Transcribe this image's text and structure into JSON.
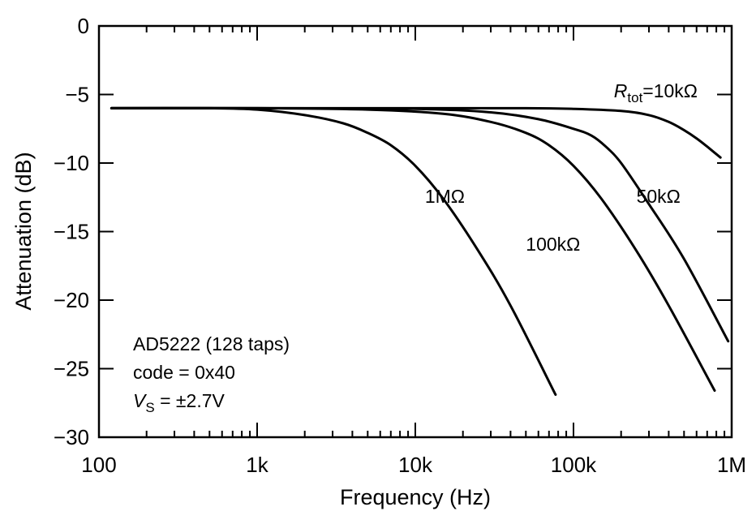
{
  "chart_data": {
    "type": "line",
    "title": "",
    "xlabel": "Frequency (Hz)",
    "ylabel": "Attenuation (dB)",
    "xscale": "log",
    "xlim": [
      100,
      1000000
    ],
    "ylim": [
      -30,
      0
    ],
    "grid": false,
    "x_ticks": [
      {
        "value": 100,
        "label": "100"
      },
      {
        "value": 1000,
        "label": "1k"
      },
      {
        "value": 10000,
        "label": "10k"
      },
      {
        "value": 100000,
        "label": "100k"
      },
      {
        "value": 1000000,
        "label": "1M"
      }
    ],
    "y_ticks": [
      {
        "value": 0,
        "label": "0"
      },
      {
        "value": -5,
        "label": "−5"
      },
      {
        "value": -10,
        "label": "−10"
      },
      {
        "value": -15,
        "label": "−15"
      },
      {
        "value": -20,
        "label": "−20"
      },
      {
        "value": -25,
        "label": "−25"
      },
      {
        "value": -30,
        "label": "−30"
      }
    ],
    "series": [
      {
        "name": "Rtot=10kΩ",
        "label_parts": {
          "italic": "R",
          "sub": "tot",
          "rest": "=10kΩ"
        },
        "x": [
          120,
          1000,
          10000,
          50000,
          100000,
          200000,
          300000,
          400000,
          500000,
          600000,
          700000,
          850000
        ],
        "y": [
          -6.0,
          -6.0,
          -6.0,
          -6.0,
          -6.05,
          -6.2,
          -6.5,
          -7.0,
          -7.6,
          -8.2,
          -8.8,
          -9.6
        ]
      },
      {
        "name": "50kΩ",
        "x": [
          120,
          1000,
          10000,
          30000,
          60000,
          100000,
          130000,
          160000,
          200000,
          300000,
          500000,
          950000
        ],
        "y": [
          -6.0,
          -6.0,
          -6.05,
          -6.3,
          -6.8,
          -7.5,
          -8.0,
          -8.8,
          -10.0,
          -13.0,
          -17.0,
          -23.0
        ]
      },
      {
        "name": "100kΩ",
        "x": [
          120,
          1000,
          5000,
          15000,
          30000,
          50000,
          70000,
          100000,
          150000,
          250000,
          400000,
          780000
        ],
        "y": [
          -6.0,
          -6.0,
          -6.1,
          -6.4,
          -7.0,
          -7.8,
          -8.7,
          -10.2,
          -12.6,
          -16.4,
          -20.4,
          -26.6
        ]
      },
      {
        "name": "1MΩ",
        "x": [
          120,
          500,
          1000,
          2000,
          3500,
          5000,
          7000,
          10000,
          15000,
          25000,
          40000,
          77000
        ],
        "y": [
          -6.0,
          -6.0,
          -6.1,
          -6.5,
          -7.1,
          -7.8,
          -8.7,
          -10.2,
          -12.6,
          -16.4,
          -20.4,
          -26.9
        ]
      }
    ],
    "series_label_positions": [
      {
        "series": 0,
        "x": 180000,
        "y": -5.2
      },
      {
        "series": 1,
        "x": 250000,
        "y": -12.9
      },
      {
        "series": 2,
        "x": 50000,
        "y": -16.4
      },
      {
        "series": 3,
        "x": 11500,
        "y": -12.9
      }
    ],
    "annotations": {
      "line1": "AD5222 (128 taps)",
      "line2": "code = 0x40",
      "line3_italic": "V",
      "line3_sub": "S",
      "line3_rest": " = ±2.7V"
    }
  }
}
